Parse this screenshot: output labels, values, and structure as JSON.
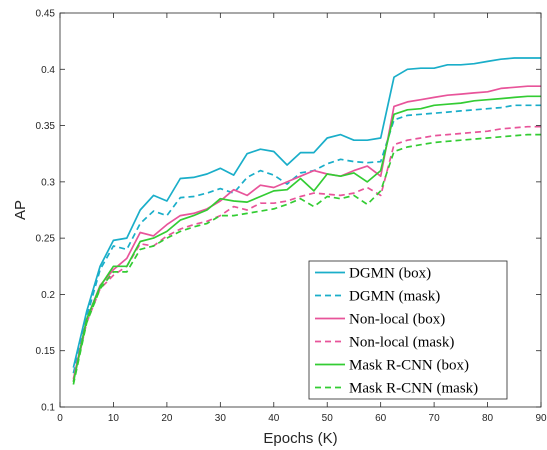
{
  "chart_data": {
    "type": "line",
    "title": "",
    "xlabel": "Epochs (K)",
    "ylabel": "AP",
    "xlim": [
      0,
      90
    ],
    "ylim": [
      0.1,
      0.45
    ],
    "xticks": [
      0,
      10,
      20,
      30,
      40,
      50,
      60,
      70,
      80,
      90
    ],
    "yticks": [
      0.1,
      0.15,
      0.2,
      0.25,
      0.3,
      0.35,
      0.4,
      0.45
    ],
    "ytick_labels": [
      "0.1",
      "0.15",
      "0.2",
      "0.25",
      "0.3",
      "0.35",
      "0.4",
      "0.45"
    ],
    "grid": false,
    "legend_position": "bottom-right",
    "series": [
      {
        "name": "DGMN (box)",
        "color": "#1aaec9",
        "dash": "solid",
        "x": [
          2.5,
          5,
          7.5,
          10,
          12.5,
          15,
          17.5,
          20,
          22.5,
          25,
          27.5,
          30,
          32.5,
          35,
          37.5,
          40,
          42.5,
          45,
          47.5,
          50,
          52.5,
          55,
          57.5,
          60,
          62.5,
          65,
          67.5,
          70,
          72.5,
          75,
          77.5,
          80,
          82.5,
          85,
          87.5,
          90
        ],
        "values": [
          0.135,
          0.185,
          0.225,
          0.248,
          0.25,
          0.275,
          0.288,
          0.283,
          0.303,
          0.304,
          0.307,
          0.312,
          0.306,
          0.325,
          0.329,
          0.327,
          0.315,
          0.326,
          0.326,
          0.339,
          0.342,
          0.337,
          0.337,
          0.339,
          0.393,
          0.4,
          0.401,
          0.401,
          0.404,
          0.404,
          0.405,
          0.407,
          0.409,
          0.41,
          0.41,
          0.41
        ]
      },
      {
        "name": "DGMN (mask)",
        "color": "#1aaec9",
        "dash": "dashed",
        "x": [
          2.5,
          5,
          7.5,
          10,
          12.5,
          15,
          17.5,
          20,
          22.5,
          25,
          27.5,
          30,
          32.5,
          35,
          37.5,
          40,
          42.5,
          45,
          47.5,
          50,
          52.5,
          55,
          57.5,
          60,
          62.5,
          65,
          67.5,
          70,
          72.5,
          75,
          77.5,
          80,
          82.5,
          85,
          87.5,
          90
        ],
        "values": [
          0.13,
          0.18,
          0.222,
          0.243,
          0.24,
          0.263,
          0.274,
          0.27,
          0.286,
          0.287,
          0.29,
          0.294,
          0.29,
          0.304,
          0.31,
          0.306,
          0.298,
          0.308,
          0.31,
          0.316,
          0.32,
          0.318,
          0.317,
          0.318,
          0.355,
          0.359,
          0.36,
          0.361,
          0.362,
          0.363,
          0.364,
          0.365,
          0.366,
          0.368,
          0.368,
          0.368
        ]
      },
      {
        "name": "Non-local (box)",
        "color": "#e8549a",
        "dash": "solid",
        "x": [
          2.5,
          5,
          7.5,
          10,
          12.5,
          15,
          17.5,
          20,
          22.5,
          25,
          27.5,
          30,
          32.5,
          35,
          37.5,
          40,
          42.5,
          45,
          47.5,
          50,
          52.5,
          55,
          57.5,
          60,
          62.5,
          65,
          67.5,
          70,
          72.5,
          75,
          77.5,
          80,
          82.5,
          85,
          87.5,
          90
        ],
        "values": [
          0.125,
          0.178,
          0.208,
          0.222,
          0.232,
          0.255,
          0.252,
          0.262,
          0.27,
          0.272,
          0.276,
          0.283,
          0.293,
          0.288,
          0.297,
          0.295,
          0.3,
          0.305,
          0.31,
          0.307,
          0.305,
          0.31,
          0.314,
          0.305,
          0.367,
          0.371,
          0.373,
          0.375,
          0.377,
          0.378,
          0.379,
          0.38,
          0.383,
          0.384,
          0.385,
          0.385
        ]
      },
      {
        "name": "Non-local (mask)",
        "color": "#e8549a",
        "dash": "dashed",
        "x": [
          2.5,
          5,
          7.5,
          10,
          12.5,
          15,
          17.5,
          20,
          22.5,
          25,
          27.5,
          30,
          32.5,
          35,
          37.5,
          40,
          42.5,
          45,
          47.5,
          50,
          52.5,
          55,
          57.5,
          60,
          62.5,
          65,
          67.5,
          70,
          72.5,
          75,
          77.5,
          80,
          82.5,
          85,
          87.5,
          90
        ],
        "values": [
          0.123,
          0.175,
          0.205,
          0.217,
          0.225,
          0.245,
          0.243,
          0.252,
          0.258,
          0.262,
          0.265,
          0.27,
          0.278,
          0.275,
          0.281,
          0.281,
          0.283,
          0.287,
          0.29,
          0.289,
          0.288,
          0.29,
          0.295,
          0.288,
          0.333,
          0.337,
          0.339,
          0.341,
          0.342,
          0.343,
          0.344,
          0.345,
          0.347,
          0.348,
          0.349,
          0.349
        ]
      },
      {
        "name": "Mask R-CNN (box)",
        "color": "#33cc33",
        "dash": "solid",
        "x": [
          2.5,
          5,
          7.5,
          10,
          12.5,
          15,
          17.5,
          20,
          22.5,
          25,
          27.5,
          30,
          32.5,
          35,
          37.5,
          40,
          42.5,
          45,
          47.5,
          50,
          52.5,
          55,
          57.5,
          60,
          62.5,
          65,
          67.5,
          70,
          72.5,
          75,
          77.5,
          80,
          82.5,
          85,
          87.5,
          90
        ],
        "values": [
          0.122,
          0.178,
          0.207,
          0.225,
          0.225,
          0.247,
          0.25,
          0.256,
          0.266,
          0.27,
          0.275,
          0.285,
          0.283,
          0.282,
          0.287,
          0.292,
          0.293,
          0.303,
          0.292,
          0.307,
          0.305,
          0.308,
          0.3,
          0.31,
          0.36,
          0.364,
          0.365,
          0.368,
          0.369,
          0.37,
          0.372,
          0.373,
          0.374,
          0.375,
          0.376,
          0.376
        ]
      },
      {
        "name": "Mask R-CNN (mask)",
        "color": "#33cc33",
        "dash": "dashed",
        "x": [
          2.5,
          5,
          7.5,
          10,
          12.5,
          15,
          17.5,
          20,
          22.5,
          25,
          27.5,
          30,
          32.5,
          35,
          37.5,
          40,
          42.5,
          45,
          47.5,
          50,
          52.5,
          55,
          57.5,
          60,
          62.5,
          65,
          67.5,
          70,
          72.5,
          75,
          77.5,
          80,
          82.5,
          85,
          87.5,
          90
        ],
        "values": [
          0.12,
          0.175,
          0.205,
          0.22,
          0.22,
          0.24,
          0.243,
          0.25,
          0.256,
          0.26,
          0.263,
          0.27,
          0.27,
          0.272,
          0.274,
          0.276,
          0.28,
          0.285,
          0.278,
          0.287,
          0.285,
          0.288,
          0.28,
          0.292,
          0.327,
          0.331,
          0.333,
          0.335,
          0.336,
          0.337,
          0.338,
          0.339,
          0.34,
          0.341,
          0.342,
          0.342
        ]
      }
    ]
  }
}
